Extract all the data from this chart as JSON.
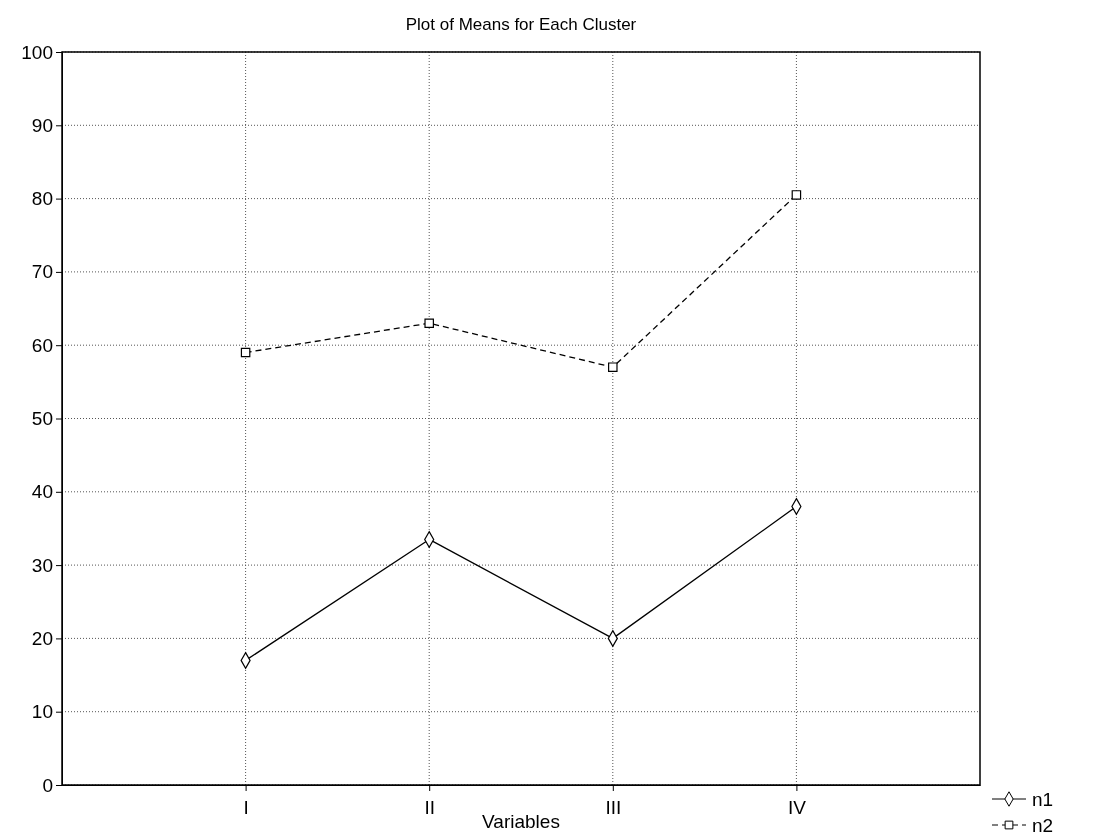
{
  "chart_data": {
    "type": "line",
    "title": "Plot of Means for Each Cluster",
    "xlabel": "Variables",
    "categories": [
      "I",
      "II",
      "III",
      "IV"
    ],
    "series": [
      {
        "name": "n1",
        "color": "#000000",
        "values": [
          17,
          33.5,
          20,
          38
        ],
        "marker": "diamond",
        "line_style": "solid"
      },
      {
        "name": "n2",
        "color": "#000000",
        "values": [
          59,
          63,
          57,
          80.5
        ],
        "marker": "square",
        "line_style": "dashed"
      }
    ],
    "ylim": [
      0,
      100
    ],
    "yticks": [
      0,
      10,
      20,
      30,
      40,
      50,
      60,
      70,
      80,
      90,
      100
    ],
    "grid": true,
    "legend": "bottom right"
  }
}
